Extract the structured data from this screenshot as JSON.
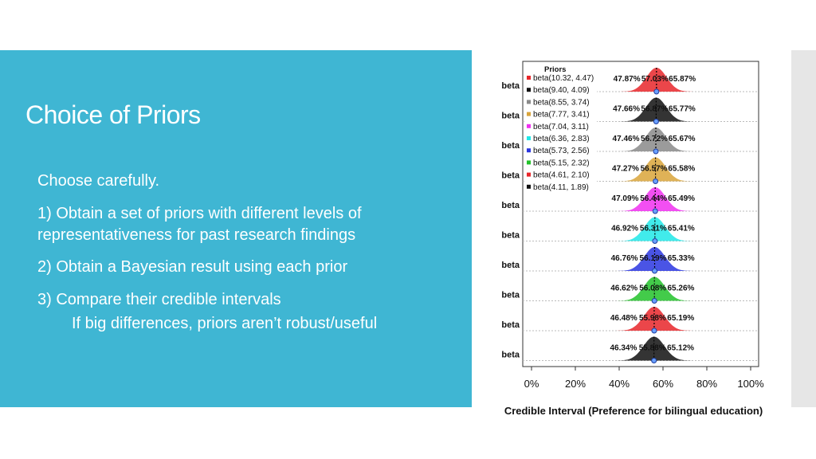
{
  "slide": {
    "title": "Choice of Priors",
    "lines": [
      "Choose carefully.",
      "1) Obtain a set of priors with different levels of",
      "representativeness for past research findings",
      "2) Obtain a Bayesian result using each prior",
      "3) Compare their credible intervals",
      "If big differences, priors aren’t robust/useful"
    ]
  },
  "chart_data": {
    "type": "ridgeline",
    "title": "",
    "xlabel": "Credible Interval (Preference for bilingual education)",
    "xticks": [
      "0%",
      "20%",
      "40%",
      "60%",
      "80%",
      "100%"
    ],
    "xlim": [
      0,
      100
    ],
    "legend_title": "Priors",
    "legend_position": "top-left",
    "rows": [
      {
        "label": "beta",
        "prior": "beta(10.32, 4.47)",
        "color": "#e8262a",
        "lower": 47.87,
        "median": 57.03,
        "upper": 65.87,
        "lower_text": "47.87%",
        "median_text": "57.03%",
        "upper_text": "65.87%"
      },
      {
        "label": "beta",
        "prior": "beta(9.40, 4.09)",
        "color": "#111111",
        "lower": 47.66,
        "median": 56.87,
        "upper": 65.77,
        "lower_text": "47.66%",
        "median_text": "56.87%",
        "upper_text": "65.77%"
      },
      {
        "label": "beta",
        "prior": "beta(8.55, 3.74)",
        "color": "#8a8a8a",
        "lower": 47.46,
        "median": 56.72,
        "upper": 65.67,
        "lower_text": "47.46%",
        "median_text": "56.72%",
        "upper_text": "65.67%"
      },
      {
        "label": "beta",
        "prior": "beta(7.77, 3.41)",
        "color": "#d9a43a",
        "lower": 47.27,
        "median": 56.57,
        "upper": 65.58,
        "lower_text": "47.27%",
        "median_text": "56.57%",
        "upper_text": "65.58%"
      },
      {
        "label": "beta",
        "prior": "beta(7.04, 3.11)",
        "color": "#f030f0",
        "lower": 47.09,
        "median": 56.44,
        "upper": 65.49,
        "lower_text": "47.09%",
        "median_text": "56.44%",
        "upper_text": "65.49%"
      },
      {
        "label": "beta",
        "prior": "beta(6.36, 2.83)",
        "color": "#20e8e8",
        "lower": 46.92,
        "median": 56.31,
        "upper": 65.41,
        "lower_text": "46.92%",
        "median_text": "56.31%",
        "upper_text": "65.41%"
      },
      {
        "label": "beta",
        "prior": "beta(5.73, 2.56)",
        "color": "#2a36e0",
        "lower": 46.76,
        "median": 56.19,
        "upper": 65.33,
        "lower_text": "46.76%",
        "median_text": "56.19%",
        "upper_text": "65.33%"
      },
      {
        "label": "beta",
        "prior": "beta(5.15, 2.32)",
        "color": "#22c22a",
        "lower": 46.62,
        "median": 56.08,
        "upper": 65.26,
        "lower_text": "46.62%",
        "median_text": "56.08%",
        "upper_text": "65.26%"
      },
      {
        "label": "beta",
        "prior": "beta(4.61, 2.10)",
        "color": "#e8262a",
        "lower": 46.48,
        "median": 55.98,
        "upper": 65.19,
        "lower_text": "46.48%",
        "median_text": "55.98%",
        "upper_text": "65.19%"
      },
      {
        "label": "beta",
        "prior": "beta(4.11, 1.89)",
        "color": "#111111",
        "lower": 46.34,
        "median": 55.88,
        "upper": 65.12,
        "lower_text": "46.34%",
        "median_text": "55.88%",
        "upper_text": "65.12%"
      }
    ]
  }
}
